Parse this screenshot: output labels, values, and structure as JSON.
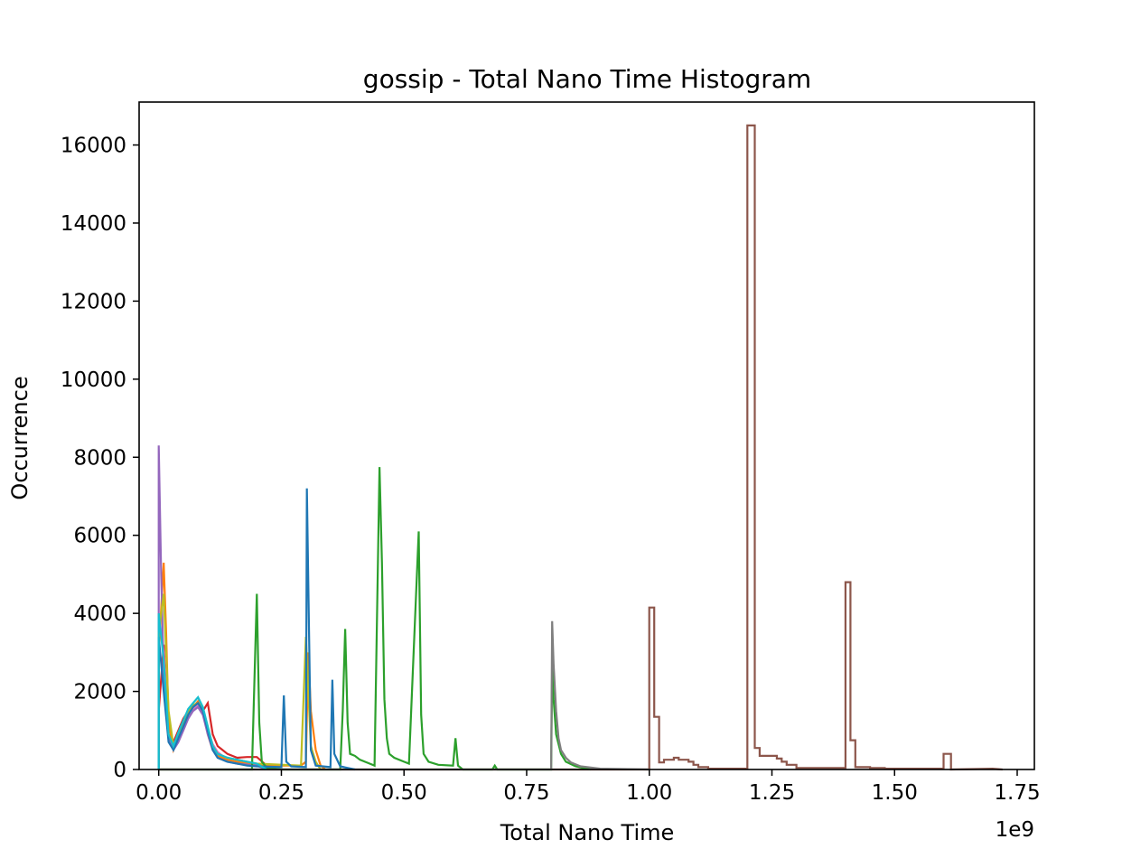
{
  "chart_data": {
    "type": "step_histogram",
    "title": "gossip - Total Nano Time Histogram",
    "xlabel": "Total Nano Time",
    "ylabel": "Occurrence",
    "x_offset_label": "1e9",
    "xlim": [
      -0.04,
      1.785
    ],
    "ylim": [
      0,
      17100
    ],
    "x_ticks": [
      0.0,
      0.25,
      0.5,
      0.75,
      1.0,
      1.25,
      1.5,
      1.75
    ],
    "x_tick_labels": [
      "0.00",
      "0.25",
      "0.50",
      "0.75",
      "1.00",
      "1.25",
      "1.50",
      "1.75"
    ],
    "y_ticks": [
      0,
      2000,
      4000,
      6000,
      8000,
      10000,
      12000,
      14000,
      16000
    ],
    "y_tick_labels": [
      "0",
      "2000",
      "4000",
      "6000",
      "8000",
      "10000",
      "12000",
      "14000",
      "16000"
    ],
    "grid": false,
    "series": [
      {
        "color": "#d62728",
        "points": [
          [
            0.0,
            0
          ],
          [
            0.0,
            1500
          ],
          [
            0.01,
            3200
          ],
          [
            0.02,
            800
          ],
          [
            0.03,
            700
          ],
          [
            0.04,
            1000
          ],
          [
            0.05,
            1300
          ],
          [
            0.06,
            1500
          ],
          [
            0.07,
            1600
          ],
          [
            0.08,
            1700
          ],
          [
            0.09,
            1500
          ],
          [
            0.1,
            1700
          ],
          [
            0.11,
            900
          ],
          [
            0.12,
            600
          ],
          [
            0.13,
            500
          ],
          [
            0.14,
            400
          ],
          [
            0.15,
            350
          ],
          [
            0.16,
            300
          ],
          [
            0.18,
            320
          ],
          [
            0.2,
            320
          ],
          [
            0.22,
            100
          ],
          [
            0.24,
            0
          ]
        ]
      },
      {
        "color": "#e377c2",
        "points": [
          [
            0.0,
            0
          ],
          [
            0.0,
            4000
          ],
          [
            0.01,
            3000
          ],
          [
            0.02,
            900
          ],
          [
            0.03,
            600
          ],
          [
            0.04,
            900
          ],
          [
            0.05,
            1200
          ],
          [
            0.06,
            1450
          ],
          [
            0.07,
            1550
          ],
          [
            0.08,
            1650
          ],
          [
            0.09,
            1450
          ],
          [
            0.1,
            1000
          ],
          [
            0.11,
            650
          ],
          [
            0.12,
            450
          ],
          [
            0.13,
            350
          ],
          [
            0.14,
            300
          ],
          [
            0.16,
            250
          ],
          [
            0.18,
            200
          ],
          [
            0.2,
            150
          ],
          [
            0.22,
            0
          ]
        ]
      },
      {
        "color": "#ff7f0e",
        "points": [
          [
            0.0,
            0
          ],
          [
            0.0,
            3000
          ],
          [
            0.01,
            5300
          ],
          [
            0.015,
            3500
          ],
          [
            0.02,
            1200
          ],
          [
            0.03,
            500
          ],
          [
            0.04,
            800
          ],
          [
            0.05,
            1100
          ],
          [
            0.06,
            1400
          ],
          [
            0.07,
            1600
          ],
          [
            0.08,
            1750
          ],
          [
            0.09,
            1500
          ],
          [
            0.1,
            900
          ],
          [
            0.11,
            500
          ],
          [
            0.12,
            350
          ],
          [
            0.14,
            250
          ],
          [
            0.16,
            200
          ],
          [
            0.18,
            150
          ],
          [
            0.2,
            100
          ],
          [
            0.29,
            100
          ],
          [
            0.3,
            200
          ],
          [
            0.305,
            3000
          ],
          [
            0.31,
            1500
          ],
          [
            0.32,
            500
          ],
          [
            0.33,
            100
          ],
          [
            0.34,
            0
          ]
        ]
      },
      {
        "color": "#9467bd",
        "points": [
          [
            0.0,
            0
          ],
          [
            0.0,
            8300
          ],
          [
            0.005,
            5000
          ],
          [
            0.01,
            2500
          ],
          [
            0.02,
            800
          ],
          [
            0.03,
            500
          ],
          [
            0.04,
            700
          ],
          [
            0.05,
            1000
          ],
          [
            0.06,
            1300
          ],
          [
            0.07,
            1500
          ],
          [
            0.08,
            1600
          ],
          [
            0.09,
            1400
          ],
          [
            0.1,
            900
          ],
          [
            0.11,
            500
          ],
          [
            0.12,
            300
          ],
          [
            0.14,
            200
          ],
          [
            0.16,
            150
          ],
          [
            0.2,
            100
          ],
          [
            0.22,
            0
          ]
        ]
      },
      {
        "color": "#bcbd22",
        "points": [
          [
            0.0,
            0
          ],
          [
            0.0,
            3500
          ],
          [
            0.01,
            4500
          ],
          [
            0.02,
            1500
          ],
          [
            0.03,
            600
          ],
          [
            0.04,
            900
          ],
          [
            0.05,
            1200
          ],
          [
            0.06,
            1500
          ],
          [
            0.07,
            1650
          ],
          [
            0.08,
            1700
          ],
          [
            0.09,
            1550
          ],
          [
            0.1,
            1100
          ],
          [
            0.11,
            600
          ],
          [
            0.12,
            400
          ],
          [
            0.14,
            300
          ],
          [
            0.16,
            250
          ],
          [
            0.18,
            200
          ],
          [
            0.2,
            150
          ],
          [
            0.29,
            100
          ],
          [
            0.3,
            3400
          ],
          [
            0.305,
            2000
          ],
          [
            0.31,
            600
          ],
          [
            0.32,
            200
          ],
          [
            0.33,
            0
          ]
        ]
      },
      {
        "color": "#8c564b",
        "points": [
          [
            0.0,
            0
          ],
          [
            1.0,
            0
          ],
          [
            1.0,
            4150
          ],
          [
            1.01,
            4150
          ],
          [
            1.01,
            1350
          ],
          [
            1.02,
            1350
          ],
          [
            1.02,
            180
          ],
          [
            1.03,
            180
          ],
          [
            1.03,
            250
          ],
          [
            1.05,
            250
          ],
          [
            1.05,
            300
          ],
          [
            1.06,
            300
          ],
          [
            1.06,
            250
          ],
          [
            1.08,
            250
          ],
          [
            1.08,
            200
          ],
          [
            1.09,
            200
          ],
          [
            1.09,
            120
          ],
          [
            1.1,
            120
          ],
          [
            1.1,
            60
          ],
          [
            1.12,
            60
          ],
          [
            1.12,
            20
          ],
          [
            1.2,
            20
          ],
          [
            1.2,
            16500
          ],
          [
            1.215,
            16500
          ],
          [
            1.215,
            550
          ],
          [
            1.225,
            550
          ],
          [
            1.225,
            350
          ],
          [
            1.26,
            350
          ],
          [
            1.26,
            280
          ],
          [
            1.27,
            280
          ],
          [
            1.27,
            200
          ],
          [
            1.28,
            200
          ],
          [
            1.28,
            120
          ],
          [
            1.3,
            120
          ],
          [
            1.3,
            40
          ],
          [
            1.4,
            40
          ],
          [
            1.4,
            4800
          ],
          [
            1.41,
            4800
          ],
          [
            1.41,
            750
          ],
          [
            1.42,
            750
          ],
          [
            1.42,
            60
          ],
          [
            1.45,
            60
          ],
          [
            1.45,
            40
          ],
          [
            1.48,
            40
          ],
          [
            1.48,
            20
          ],
          [
            1.6,
            20
          ],
          [
            1.6,
            400
          ],
          [
            1.615,
            400
          ],
          [
            1.615,
            0
          ],
          [
            1.7,
            20
          ],
          [
            1.72,
            0
          ]
        ]
      },
      {
        "color": "#2ca02c",
        "points": [
          [
            0.0,
            0
          ],
          [
            0.19,
            0
          ],
          [
            0.2,
            4500
          ],
          [
            0.205,
            1200
          ],
          [
            0.21,
            200
          ],
          [
            0.22,
            50
          ],
          [
            0.25,
            0
          ],
          [
            0.37,
            0
          ],
          [
            0.375,
            1500
          ],
          [
            0.38,
            3600
          ],
          [
            0.385,
            1200
          ],
          [
            0.39,
            400
          ],
          [
            0.4,
            350
          ],
          [
            0.41,
            250
          ],
          [
            0.43,
            150
          ],
          [
            0.44,
            100
          ],
          [
            0.45,
            7750
          ],
          [
            0.455,
            5300
          ],
          [
            0.46,
            1800
          ],
          [
            0.465,
            800
          ],
          [
            0.47,
            400
          ],
          [
            0.48,
            300
          ],
          [
            0.5,
            200
          ],
          [
            0.51,
            150
          ],
          [
            0.53,
            6100
          ],
          [
            0.535,
            1400
          ],
          [
            0.54,
            400
          ],
          [
            0.55,
            200
          ],
          [
            0.57,
            120
          ],
          [
            0.6,
            100
          ],
          [
            0.605,
            800
          ],
          [
            0.61,
            100
          ],
          [
            0.62,
            0
          ],
          [
            0.68,
            0
          ],
          [
            0.685,
            100
          ],
          [
            0.69,
            0
          ],
          [
            0.8,
            0
          ],
          [
            0.802,
            2600
          ],
          [
            0.805,
            1800
          ],
          [
            0.81,
            900
          ],
          [
            0.82,
            400
          ],
          [
            0.83,
            200
          ],
          [
            0.85,
            80
          ],
          [
            0.88,
            0
          ]
        ]
      },
      {
        "color": "#7f7f7f",
        "points": [
          [
            0.0,
            0
          ],
          [
            0.8,
            0
          ],
          [
            0.802,
            3800
          ],
          [
            0.805,
            2700
          ],
          [
            0.81,
            1500
          ],
          [
            0.815,
            800
          ],
          [
            0.82,
            500
          ],
          [
            0.83,
            300
          ],
          [
            0.84,
            180
          ],
          [
            0.86,
            80
          ],
          [
            0.9,
            20
          ],
          [
            1.0,
            0
          ]
        ]
      },
      {
        "color": "#1f77b4",
        "points": [
          [
            0.0,
            0
          ],
          [
            0.0,
            3400
          ],
          [
            0.01,
            2000
          ],
          [
            0.02,
            700
          ],
          [
            0.03,
            500
          ],
          [
            0.04,
            800
          ],
          [
            0.05,
            1100
          ],
          [
            0.06,
            1400
          ],
          [
            0.07,
            1600
          ],
          [
            0.08,
            1700
          ],
          [
            0.09,
            1500
          ],
          [
            0.1,
            1000
          ],
          [
            0.11,
            500
          ],
          [
            0.12,
            300
          ],
          [
            0.14,
            200
          ],
          [
            0.16,
            150
          ],
          [
            0.18,
            100
          ],
          [
            0.2,
            80
          ],
          [
            0.25,
            60
          ],
          [
            0.255,
            1900
          ],
          [
            0.26,
            200
          ],
          [
            0.27,
            80
          ],
          [
            0.3,
            60
          ],
          [
            0.302,
            7200
          ],
          [
            0.306,
            3800
          ],
          [
            0.31,
            500
          ],
          [
            0.32,
            100
          ],
          [
            0.35,
            60
          ],
          [
            0.354,
            2300
          ],
          [
            0.358,
            400
          ],
          [
            0.37,
            80
          ],
          [
            0.4,
            0
          ]
        ]
      },
      {
        "color": "#17becf",
        "points": [
          [
            0.0,
            0
          ],
          [
            0.0,
            4000
          ],
          [
            0.01,
            2800
          ],
          [
            0.02,
            900
          ],
          [
            0.03,
            600
          ],
          [
            0.04,
            950
          ],
          [
            0.05,
            1250
          ],
          [
            0.06,
            1550
          ],
          [
            0.07,
            1700
          ],
          [
            0.08,
            1850
          ],
          [
            0.09,
            1600
          ],
          [
            0.1,
            1100
          ],
          [
            0.11,
            600
          ],
          [
            0.12,
            400
          ],
          [
            0.14,
            300
          ],
          [
            0.16,
            250
          ],
          [
            0.18,
            200
          ],
          [
            0.2,
            150
          ],
          [
            0.22,
            0
          ]
        ]
      }
    ]
  }
}
